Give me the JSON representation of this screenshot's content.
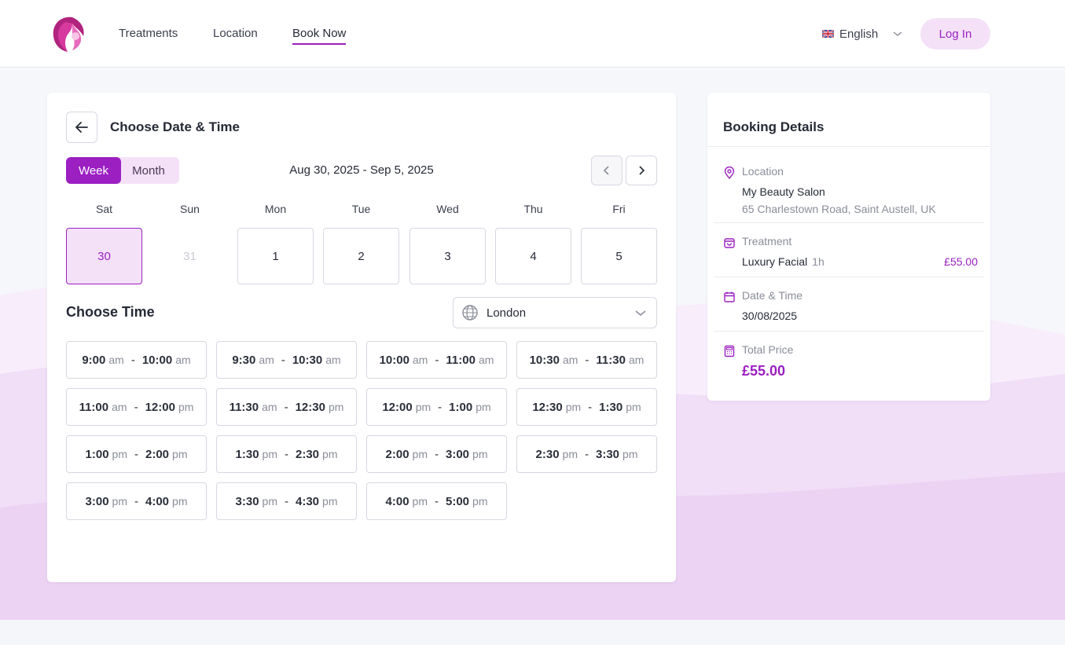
{
  "nav": {
    "links": [
      "Treatments",
      "Location",
      "Book Now"
    ],
    "language": "English",
    "login": "Log In"
  },
  "booking": {
    "title": "Choose Date & Time",
    "view_toggle": [
      "Week",
      "Month"
    ],
    "active_view": "Week",
    "date_range": "Aug 30, 2025 - Sep 5, 2025",
    "days": [
      {
        "name": "Sat",
        "date": "30",
        "state": "selected"
      },
      {
        "name": "Sun",
        "date": "31",
        "state": "disabled"
      },
      {
        "name": "Mon",
        "date": "1",
        "state": "available"
      },
      {
        "name": "Tue",
        "date": "2",
        "state": "available"
      },
      {
        "name": "Wed",
        "date": "3",
        "state": "available"
      },
      {
        "name": "Thu",
        "date": "4",
        "state": "available"
      },
      {
        "name": "Fri",
        "date": "5",
        "state": "available"
      }
    ],
    "choose_time_label": "Choose Time",
    "timezone": "London",
    "slots": [
      {
        "start": "9:00",
        "start_ap": "am",
        "end": "10:00",
        "end_ap": "am"
      },
      {
        "start": "9:30",
        "start_ap": "am",
        "end": "10:30",
        "end_ap": "am"
      },
      {
        "start": "10:00",
        "start_ap": "am",
        "end": "11:00",
        "end_ap": "am"
      },
      {
        "start": "10:30",
        "start_ap": "am",
        "end": "11:30",
        "end_ap": "am"
      },
      {
        "start": "11:00",
        "start_ap": "am",
        "end": "12:00",
        "end_ap": "pm"
      },
      {
        "start": "11:30",
        "start_ap": "am",
        "end": "12:30",
        "end_ap": "pm"
      },
      {
        "start": "12:00",
        "start_ap": "pm",
        "end": "1:00",
        "end_ap": "pm"
      },
      {
        "start": "12:30",
        "start_ap": "pm",
        "end": "1:30",
        "end_ap": "pm"
      },
      {
        "start": "1:00",
        "start_ap": "pm",
        "end": "2:00",
        "end_ap": "pm"
      },
      {
        "start": "1:30",
        "start_ap": "pm",
        "end": "2:30",
        "end_ap": "pm"
      },
      {
        "start": "2:00",
        "start_ap": "pm",
        "end": "3:00",
        "end_ap": "pm"
      },
      {
        "start": "2:30",
        "start_ap": "pm",
        "end": "3:30",
        "end_ap": "pm"
      },
      {
        "start": "3:00",
        "start_ap": "pm",
        "end": "4:00",
        "end_ap": "pm"
      },
      {
        "start": "3:30",
        "start_ap": "pm",
        "end": "4:30",
        "end_ap": "pm"
      },
      {
        "start": "4:00",
        "start_ap": "pm",
        "end": "5:00",
        "end_ap": "pm"
      }
    ]
  },
  "details": {
    "title": "Booking Details",
    "location_label": "Location",
    "location_name": "My Beauty Salon",
    "location_address": "65 Charlestown Road, Saint Austell, UK",
    "treatment_label": "Treatment",
    "treatment_name": "Luxury Facial",
    "treatment_duration": "1h",
    "treatment_price": "£55.00",
    "datetime_label": "Date & Time",
    "datetime_value": "30/08/2025",
    "total_label": "Total Price",
    "total_value": "£55.00"
  },
  "colors": {
    "accent": "#9b1fc1",
    "accent_light": "#f4e1f8",
    "border": "#d6d8e1"
  }
}
